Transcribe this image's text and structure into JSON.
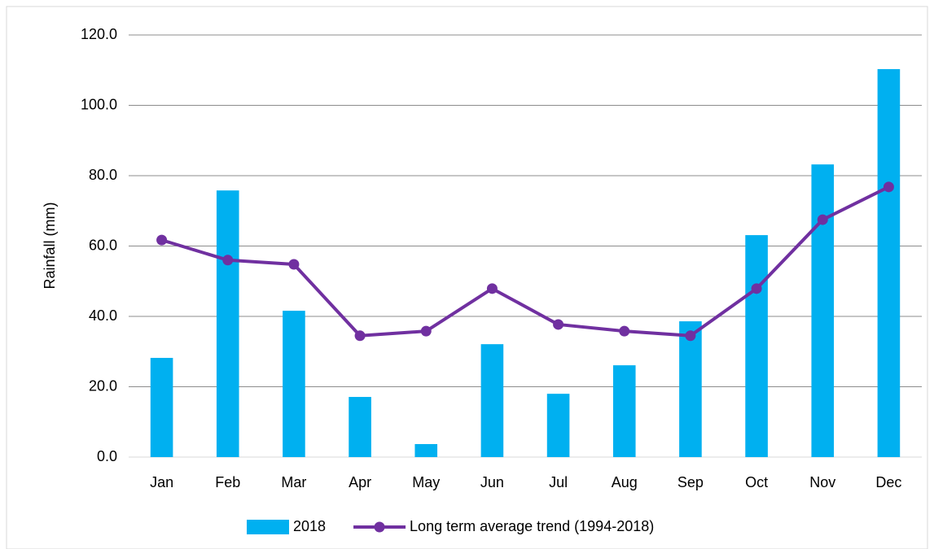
{
  "chart_data": {
    "type": "bar",
    "y_label": "Rainfall (mm)",
    "categories": [
      "Jan",
      "Feb",
      "Mar",
      "Apr",
      "May",
      "Jun",
      "Jul",
      "Aug",
      "Sep",
      "Oct",
      "Nov",
      "Dec"
    ],
    "series": [
      {
        "name": "2018",
        "type": "bar",
        "color": "#00b0f0",
        "values": [
          28.2,
          75.8,
          41.6,
          17.1,
          3.7,
          32.1,
          18.0,
          26.1,
          38.6,
          63.1,
          83.2,
          110.3
        ]
      },
      {
        "name": "Long term average trend (1994-2018)",
        "type": "line",
        "color": "#7030a0",
        "values": [
          61.7,
          56.0,
          54.8,
          34.5,
          35.8,
          47.9,
          37.7,
          35.8,
          34.5,
          47.9,
          67.5,
          76.8
        ]
      }
    ],
    "ylim": [
      0,
      120
    ],
    "yticks": [
      {
        "value": 0,
        "label": "0.0"
      },
      {
        "value": 20,
        "label": "20.0"
      },
      {
        "value": 40,
        "label": "40.0"
      },
      {
        "value": 60,
        "label": "60.0"
      },
      {
        "value": 80,
        "label": "80.0"
      },
      {
        "value": 100,
        "label": "100.0"
      },
      {
        "value": 120,
        "label": "120.0"
      }
    ],
    "grid": true
  }
}
